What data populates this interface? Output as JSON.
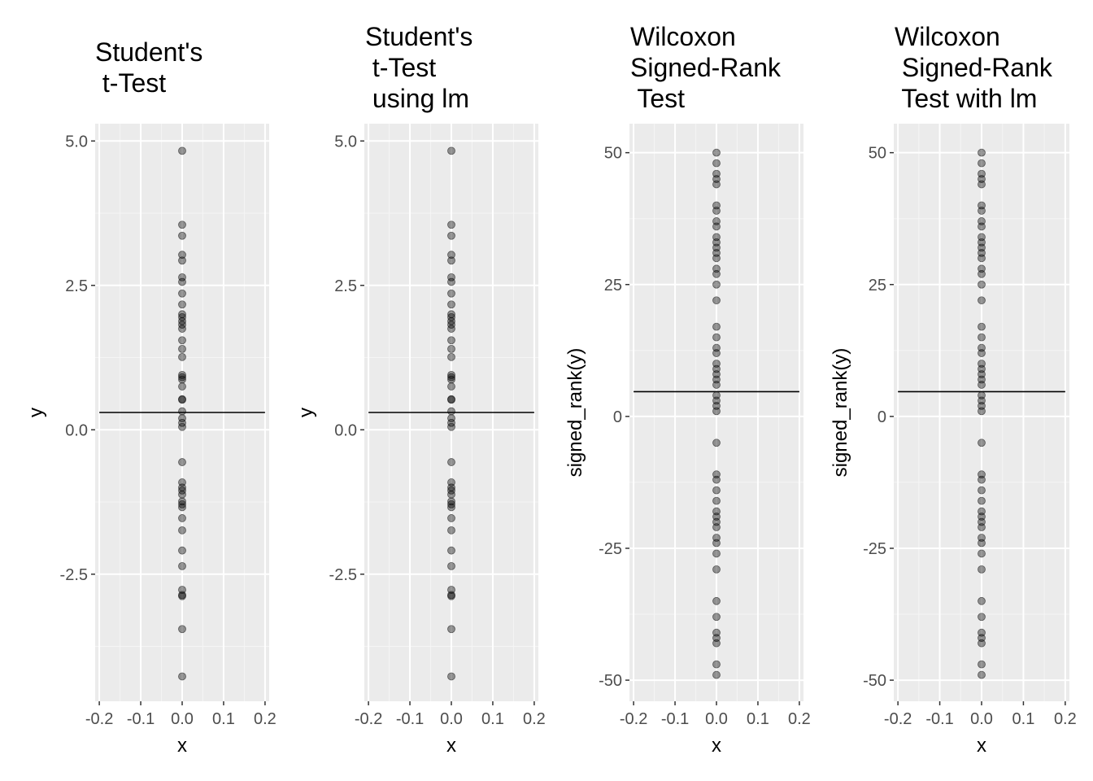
{
  "chart_data": [
    {
      "type": "scatter",
      "title": [
        "Student's",
        " t-Test"
      ],
      "xlabel": "x",
      "ylabel": "y",
      "xlim": [
        -0.21,
        0.21
      ],
      "ylim": [
        -4.7,
        5.3
      ],
      "x_ticks": [
        -0.2,
        -0.1,
        0.0,
        0.1,
        0.2
      ],
      "x_tick_labels": [
        "-0.2",
        "-0.1",
        "0.0",
        "0.1",
        "0.2"
      ],
      "y_ticks": [
        -2.5,
        0.0,
        2.5,
        5.0
      ],
      "y_tick_labels": [
        "-2.5",
        "0.0",
        "2.5",
        "5.0"
      ],
      "grid": true,
      "hline": {
        "y": 0.3,
        "x_range": [
          -0.2,
          0.2
        ]
      },
      "points": {
        "x": 0,
        "y": [
          4.83,
          3.55,
          3.36,
          3.03,
          2.93,
          2.64,
          2.56,
          2.36,
          2.17,
          2.0,
          1.95,
          1.88,
          1.82,
          1.75,
          1.55,
          1.4,
          1.26,
          0.95,
          0.91,
          0.87,
          0.75,
          0.53,
          0.52,
          0.32,
          0.2,
          0.12,
          0.05,
          -0.56,
          -0.91,
          -1.0,
          -1.05,
          -1.12,
          -1.24,
          -1.29,
          -1.34,
          -1.53,
          -1.74,
          -2.09,
          -2.36,
          -2.77,
          -2.86,
          -2.88,
          -3.45,
          -4.27
        ]
      }
    },
    {
      "type": "scatter",
      "title": [
        "Student's",
        " t-Test",
        " using lm"
      ],
      "xlabel": "x",
      "ylabel": "y",
      "xlim": [
        -0.21,
        0.21
      ],
      "ylim": [
        -4.7,
        5.3
      ],
      "x_ticks": [
        -0.2,
        -0.1,
        0.0,
        0.1,
        0.2
      ],
      "x_tick_labels": [
        "-0.2",
        "-0.1",
        "0.0",
        "0.1",
        "0.2"
      ],
      "y_ticks": [
        -2.5,
        0.0,
        2.5,
        5.0
      ],
      "y_tick_labels": [
        "-2.5",
        "0.0",
        "2.5",
        "5.0"
      ],
      "grid": true,
      "hline": {
        "y": 0.3,
        "x_range": [
          -0.2,
          0.2
        ]
      },
      "points": {
        "x": 0,
        "y": [
          4.83,
          3.55,
          3.36,
          3.03,
          2.93,
          2.64,
          2.56,
          2.36,
          2.17,
          2.0,
          1.95,
          1.88,
          1.82,
          1.75,
          1.55,
          1.4,
          1.26,
          0.95,
          0.91,
          0.87,
          0.75,
          0.53,
          0.52,
          0.32,
          0.2,
          0.12,
          0.05,
          -0.56,
          -0.91,
          -1.0,
          -1.05,
          -1.12,
          -1.24,
          -1.29,
          -1.34,
          -1.53,
          -1.74,
          -2.09,
          -2.36,
          -2.77,
          -2.86,
          -2.88,
          -3.45,
          -4.27
        ]
      }
    },
    {
      "type": "scatter",
      "title": [
        "Wilcoxon",
        "Signed-Rank",
        " Test"
      ],
      "xlabel": "x",
      "ylabel": "signed_rank(y)",
      "xlim": [
        -0.21,
        0.21
      ],
      "ylim": [
        -54,
        55.5
      ],
      "x_ticks": [
        -0.2,
        -0.1,
        0.0,
        0.1,
        0.2
      ],
      "x_tick_labels": [
        "-0.2",
        "-0.1",
        "0.0",
        "0.1",
        "0.2"
      ],
      "y_ticks": [
        -50,
        -25,
        0,
        25,
        50
      ],
      "y_tick_labels": [
        "-50",
        "-25",
        "0",
        "25",
        "50"
      ],
      "grid": true,
      "hline": {
        "y": 4.7,
        "x_range": [
          -0.2,
          0.2
        ]
      },
      "points": {
        "x": 0,
        "y": [
          50,
          48,
          46,
          45,
          44,
          40,
          39,
          37,
          36,
          34,
          33,
          32,
          31,
          30,
          28,
          27,
          25,
          22,
          17,
          15,
          13,
          12,
          10,
          9,
          8,
          7,
          6,
          4,
          3,
          2,
          1,
          -5,
          -11,
          -12,
          -14,
          -16,
          -18,
          -19,
          -20,
          -21,
          -23,
          -24,
          -26,
          -29,
          -35,
          -38,
          -41,
          -42,
          -43,
          -47,
          -49
        ]
      }
    },
    {
      "type": "scatter",
      "title": [
        "Wilcoxon",
        " Signed-Rank",
        " Test with lm"
      ],
      "xlabel": "x",
      "ylabel": "signed_rank(y)",
      "xlim": [
        -0.21,
        0.21
      ],
      "ylim": [
        -54,
        55.5
      ],
      "x_ticks": [
        -0.2,
        -0.1,
        0.0,
        0.1,
        0.2
      ],
      "x_tick_labels": [
        "-0.2",
        "-0.1",
        "0.0",
        "0.1",
        "0.2"
      ],
      "y_ticks": [
        -50,
        -25,
        0,
        25,
        50
      ],
      "y_tick_labels": [
        "-50",
        "-25",
        "0",
        "25",
        "50"
      ],
      "grid": true,
      "hline": {
        "y": 4.7,
        "x_range": [
          -0.2,
          0.2
        ]
      },
      "points": {
        "x": 0,
        "y": [
          50,
          48,
          46,
          45,
          44,
          40,
          39,
          37,
          36,
          34,
          33,
          32,
          31,
          30,
          28,
          27,
          25,
          22,
          17,
          15,
          13,
          12,
          10,
          9,
          8,
          7,
          6,
          4,
          3,
          2,
          1,
          -5,
          -11,
          -12,
          -14,
          -16,
          -18,
          -19,
          -20,
          -21,
          -23,
          -24,
          -26,
          -29,
          -35,
          -38,
          -41,
          -42,
          -43,
          -47,
          -49
        ]
      }
    }
  ],
  "colors": {
    "panel_background": "#ebebeb",
    "grid_major": "#ffffff",
    "grid_minor": "#f5f5f5",
    "point_fill": "#000000",
    "point_fill_opacity": 0.4,
    "hline": "#000000",
    "tick_label": "#4d4d4d"
  }
}
